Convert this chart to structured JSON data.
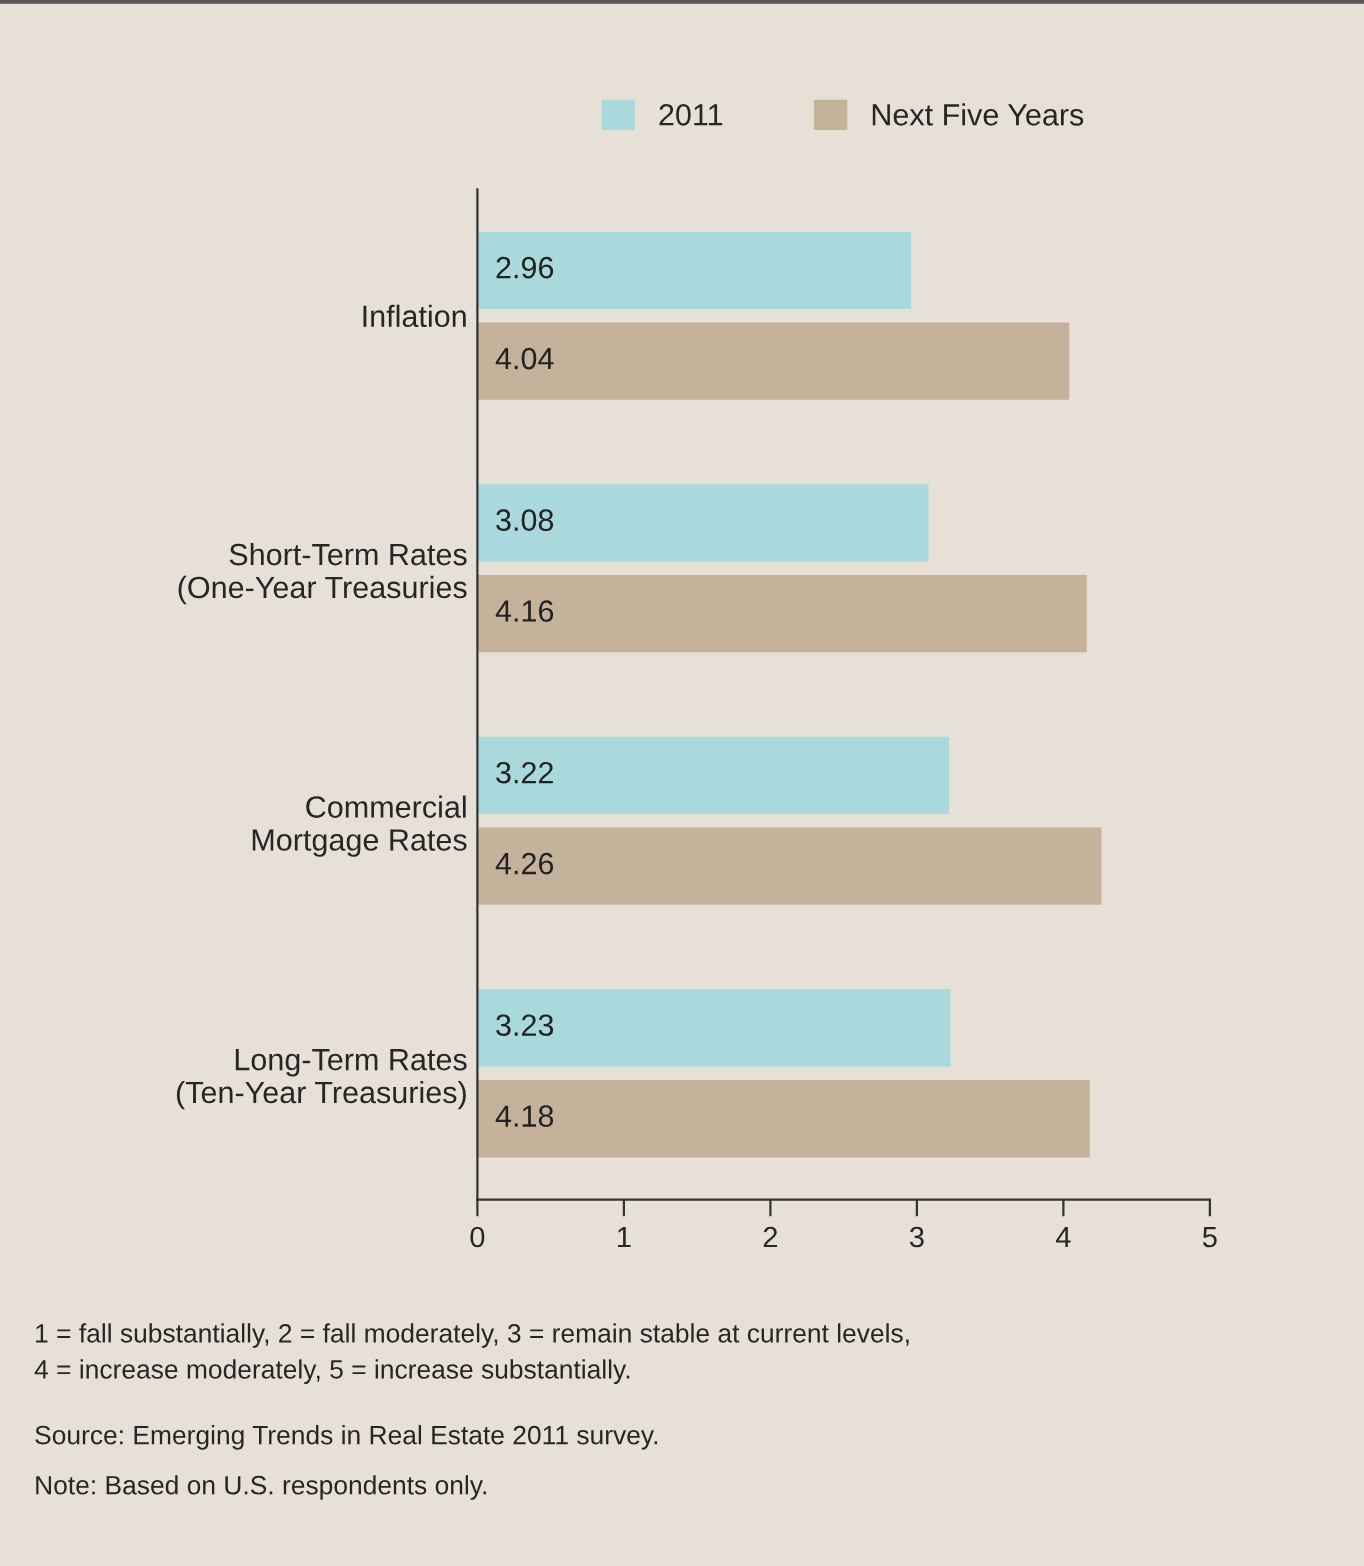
{
  "chart_data": {
    "type": "bar",
    "orientation": "horizontal",
    "categories": [
      "Inflation",
      "Short-Term Rates\n(One-Year Treasuries",
      "Commercial\nMortgage Rates",
      "Long-Term Rates\n(Ten-Year Treasuries)"
    ],
    "series": [
      {
        "name": "2011",
        "color": "#a9d9dc",
        "values": [
          2.96,
          3.08,
          3.22,
          3.23
        ]
      },
      {
        "name": "Next Five Years",
        "color": "#c5b29b",
        "values": [
          4.04,
          4.16,
          4.26,
          4.18
        ]
      }
    ],
    "xlim": [
      0,
      5
    ],
    "xticks": [
      0,
      1,
      2,
      3,
      4,
      5
    ],
    "data_labels": true,
    "grid": false,
    "legend": "top",
    "annotations": [
      "1 = fall substantially, 2 = fall moderately, 3 = remain stable at current levels,\n4 = increase moderately, 5 = increase substantially.",
      "Source: Emerging Trends in Real Estate 2011 survey.",
      "Note: Based on U.S. respondents only."
    ]
  }
}
